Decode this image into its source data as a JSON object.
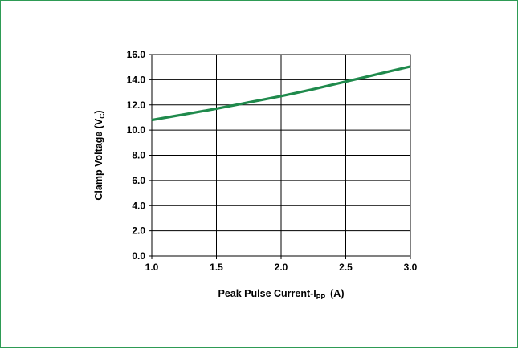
{
  "chart_data": {
    "type": "line",
    "title": "",
    "xlabel": {
      "main": "Peak Pulse Current-I",
      "sub": "PP",
      "unit": "(A)"
    },
    "ylabel": {
      "main": "Clamp Voltage (V",
      "sub": "C",
      "close": ")"
    },
    "xlim": [
      1.0,
      3.0
    ],
    "ylim": [
      0.0,
      16.0
    ],
    "x_ticks": [
      "1.0",
      "1.5",
      "2.0",
      "2.5",
      "3.0"
    ],
    "x_tick_values": [
      1.0,
      1.5,
      2.0,
      2.5,
      3.0
    ],
    "y_ticks": [
      "0.0",
      "2.0",
      "4.0",
      "6.0",
      "8.0",
      "10.0",
      "12.0",
      "14.0",
      "16.0"
    ],
    "y_tick_values": [
      0,
      2,
      4,
      6,
      8,
      10,
      12,
      14,
      16
    ],
    "grid": true,
    "legend": "none",
    "series": [
      {
        "color": "#1f8a4c",
        "x": [
          1.0,
          1.25,
          1.5,
          1.75,
          2.0,
          2.25,
          2.5,
          2.75,
          3.0
        ],
        "y": [
          10.8,
          11.25,
          11.7,
          12.2,
          12.7,
          13.25,
          13.85,
          14.45,
          15.05
        ]
      }
    ]
  }
}
